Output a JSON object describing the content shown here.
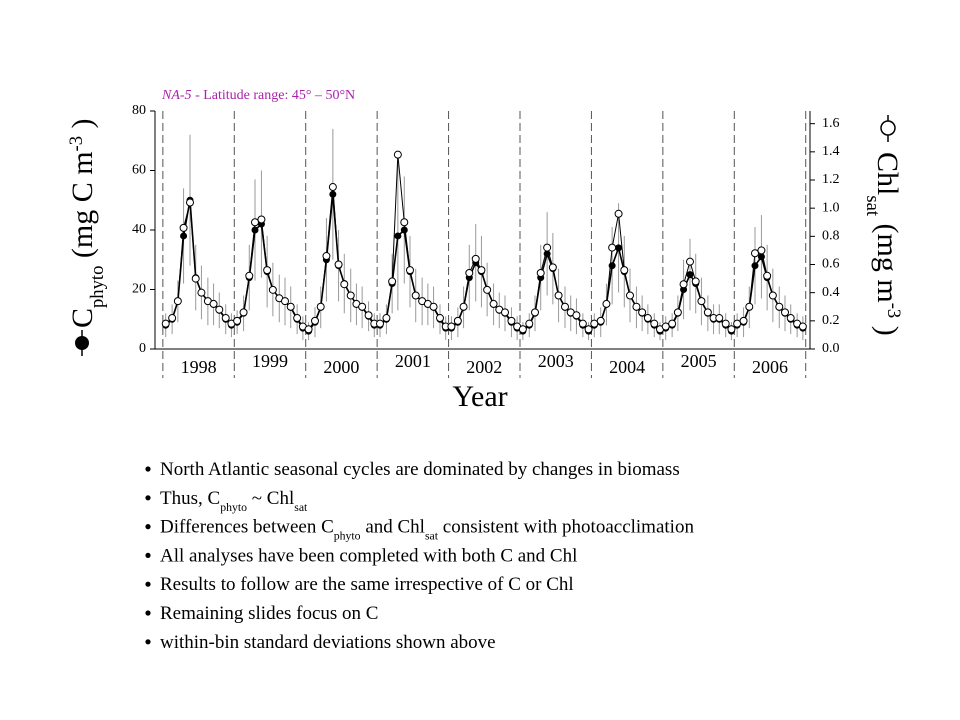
{
  "chart_data": {
    "type": "line",
    "title": {
      "region": "NA-5",
      "text": " - Latitude range: 45° – 50°N"
    },
    "ylabel": [
      {
        "t": "C"
      },
      {
        "sub": "phyto"
      },
      {
        "t": " (mg C m"
      },
      {
        "sup": "-3"
      },
      {
        "t": " )"
      }
    ],
    "y2label": [
      {
        "t": "Chl"
      },
      {
        "sub": "sat"
      },
      {
        "t": " (mg m"
      },
      {
        "sup": "-3"
      },
      {
        "t": " )"
      }
    ],
    "xlabel": "Year",
    "xlim": [
      1997.89,
      2007.06
    ],
    "xticks": [
      {
        "value": 1998.5,
        "label": "1998"
      },
      {
        "value": 1999.5,
        "label": "1999"
      },
      {
        "value": 2000.5,
        "label": "2000"
      },
      {
        "value": 2001.5,
        "label": "2001"
      },
      {
        "value": 2002.5,
        "label": "2002"
      },
      {
        "value": 2003.5,
        "label": "2003"
      },
      {
        "value": 2004.5,
        "label": "2004"
      },
      {
        "value": 2005.5,
        "label": "2005"
      },
      {
        "value": 2006.5,
        "label": "2006"
      }
    ],
    "ylim": [
      0,
      80
    ],
    "yticks": [
      0,
      20,
      40,
      60,
      80
    ],
    "y2lim": [
      0,
      1.69
    ],
    "y2ticks": [
      {
        "value": 0,
        "label": "0.0"
      },
      0.2,
      0.4,
      0.6,
      0.8,
      {
        "value": 1,
        "label": "1.0"
      },
      1.2,
      1.4,
      1.6
    ],
    "x": [
      1998.04,
      1998.13,
      1998.21,
      1998.29,
      1998.38,
      1998.46,
      1998.54,
      1998.63,
      1998.71,
      1998.79,
      1998.88,
      1998.96,
      1999.04,
      1999.13,
      1999.21,
      1999.29,
      1999.38,
      1999.46,
      1999.54,
      1999.63,
      1999.71,
      1999.79,
      1999.88,
      1999.96,
      2000.04,
      2000.13,
      2000.21,
      2000.29,
      2000.38,
      2000.46,
      2000.54,
      2000.63,
      2000.71,
      2000.79,
      2000.88,
      2000.96,
      2001.04,
      2001.13,
      2001.21,
      2001.29,
      2001.38,
      2001.46,
      2001.54,
      2001.63,
      2001.71,
      2001.79,
      2001.88,
      2001.96,
      2002.04,
      2002.13,
      2002.21,
      2002.29,
      2002.38,
      2002.46,
      2002.54,
      2002.63,
      2002.71,
      2002.79,
      2002.88,
      2002.96,
      2003.04,
      2003.13,
      2003.21,
      2003.29,
      2003.38,
      2003.46,
      2003.54,
      2003.63,
      2003.71,
      2003.79,
      2003.88,
      2003.96,
      2004.04,
      2004.13,
      2004.21,
      2004.29,
      2004.38,
      2004.46,
      2004.54,
      2004.63,
      2004.71,
      2004.79,
      2004.88,
      2004.96,
      2005.04,
      2005.13,
      2005.21,
      2005.29,
      2005.38,
      2005.46,
      2005.54,
      2005.63,
      2005.71,
      2005.79,
      2005.88,
      2005.96,
      2006.04,
      2006.13,
      2006.21,
      2006.29,
      2006.38,
      2006.46,
      2006.54,
      2006.63,
      2006.71,
      2006.79,
      2006.88,
      2006.96
    ],
    "series": [
      {
        "color": "#000000",
        "marker": "filled",
        "values": [
          8,
          10,
          16,
          38,
          50,
          24,
          19,
          16,
          15,
          13,
          10,
          8,
          9,
          12,
          24,
          40,
          42,
          26,
          20,
          17,
          16,
          14,
          10,
          7,
          6,
          9,
          14,
          30,
          52,
          28,
          22,
          18,
          15,
          14,
          11,
          8,
          8,
          10,
          22,
          38,
          40,
          26,
          18,
          16,
          15,
          14,
          10,
          7,
          7,
          9,
          14,
          24,
          29,
          26,
          20,
          15,
          13,
          12,
          9,
          7,
          6,
          8,
          12,
          24,
          32,
          27,
          18,
          14,
          12,
          11,
          8,
          6,
          8,
          9,
          15,
          28,
          34,
          26,
          18,
          14,
          12,
          10,
          8,
          6,
          7,
          8,
          12,
          20,
          25,
          22,
          16,
          12,
          10,
          10,
          8,
          6,
          8,
          9,
          14,
          28,
          31,
          24,
          18,
          14,
          12,
          10,
          8,
          7
        ],
        "errors": [
          4,
          5,
          7,
          16,
          22,
          11,
          9,
          8,
          7,
          6,
          5,
          4,
          4,
          6,
          11,
          17,
          18,
          12,
          9,
          8,
          8,
          7,
          5,
          4,
          3,
          5,
          7,
          14,
          22,
          12,
          10,
          9,
          7,
          7,
          5,
          4,
          4,
          5,
          10,
          25,
          18,
          12,
          9,
          8,
          7,
          7,
          5,
          4,
          4,
          5,
          7,
          11,
          13,
          12,
          9,
          7,
          6,
          6,
          5,
          4,
          3,
          4,
          6,
          11,
          14,
          12,
          9,
          7,
          6,
          6,
          4,
          3,
          4,
          5,
          7,
          13,
          15,
          12,
          9,
          7,
          6,
          5,
          4,
          3,
          4,
          4,
          6,
          10,
          12,
          10,
          8,
          6,
          5,
          5,
          4,
          3,
          4,
          5,
          7,
          13,
          14,
          11,
          9,
          7,
          6,
          5,
          4,
          4
        ]
      },
      {
        "color": "#000000",
        "marker": "open",
        "axis": "y2",
        "values": [
          0.18,
          0.22,
          0.34,
          0.86,
          1.04,
          0.5,
          0.4,
          0.34,
          0.32,
          0.28,
          0.22,
          0.18,
          0.2,
          0.26,
          0.52,
          0.9,
          0.92,
          0.56,
          0.42,
          0.36,
          0.34,
          0.3,
          0.22,
          0.16,
          0.14,
          0.2,
          0.3,
          0.66,
          1.15,
          0.6,
          0.46,
          0.38,
          0.32,
          0.3,
          0.24,
          0.18,
          0.18,
          0.22,
          0.48,
          1.38,
          0.9,
          0.56,
          0.38,
          0.34,
          0.32,
          0.3,
          0.22,
          0.16,
          0.16,
          0.2,
          0.3,
          0.54,
          0.64,
          0.56,
          0.42,
          0.32,
          0.28,
          0.26,
          0.2,
          0.16,
          0.14,
          0.18,
          0.26,
          0.54,
          0.72,
          0.58,
          0.38,
          0.3,
          0.26,
          0.24,
          0.18,
          0.14,
          0.18,
          0.2,
          0.32,
          0.72,
          0.96,
          0.56,
          0.38,
          0.3,
          0.26,
          0.22,
          0.18,
          0.14,
          0.16,
          0.18,
          0.26,
          0.46,
          0.62,
          0.48,
          0.34,
          0.26,
          0.22,
          0.22,
          0.18,
          0.14,
          0.18,
          0.2,
          0.3,
          0.68,
          0.7,
          0.52,
          0.38,
          0.3,
          0.26,
          0.22,
          0.18,
          0.16
        ]
      }
    ],
    "bullets": [
      [
        {
          "t": "North Atlantic seasonal cycles are dominated by changes in biomass"
        }
      ],
      [
        {
          "t": "Thus, C"
        },
        {
          "sub": "phyto"
        },
        {
          "t": " ~ Chl"
        },
        {
          "sub": "sat"
        }
      ],
      [
        {
          "t": "Differences between C"
        },
        {
          "sub": "phyto"
        },
        {
          "t": " and Chl"
        },
        {
          "sub": "sat"
        },
        {
          "t": " consistent with photoacclimation"
        }
      ],
      [
        {
          "t": "All analyses have been completed with both C and Chl"
        }
      ],
      [
        {
          "t": "Results to follow are the same irrespective of C or Chl"
        }
      ],
      [
        {
          "t": "Remaining slides focus on C"
        }
      ],
      [
        {
          "t": "within-bin standard deviations shown above"
        }
      ]
    ]
  }
}
